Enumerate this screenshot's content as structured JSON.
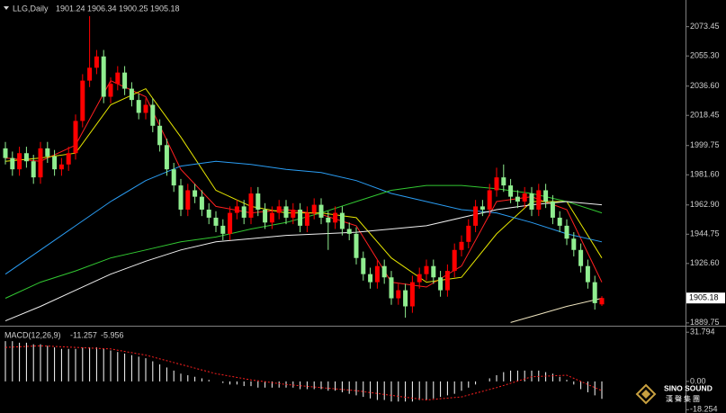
{
  "chart_data": [
    {
      "type": "candlestick",
      "symbol": "LLG,Daily",
      "up_color": "#ff0000",
      "down_color": "#90ee90",
      "open": [
        1998,
        1992,
        1985,
        1995,
        1990,
        1980,
        1998,
        1993,
        1985,
        1988,
        1995,
        2015,
        2040,
        2048,
        2055,
        2030,
        2038,
        2045,
        2035,
        2028,
        2020,
        2025,
        2012,
        2000,
        1985,
        1975,
        1960,
        1972,
        1968,
        1960,
        1955,
        1950,
        1945,
        1958,
        1962,
        1955,
        1970,
        1960,
        1952,
        1958,
        1962,
        1955,
        1960,
        1950,
        1958,
        1963,
        1955,
        1952,
        1958,
        1948,
        1945,
        1930,
        1920,
        1915,
        1925,
        1918,
        1905,
        1910,
        1900,
        1915,
        1920,
        1925,
        1918,
        1910,
        1922,
        1935,
        1940,
        1950,
        1962,
        1960,
        1972,
        1980,
        1975,
        1968,
        1965,
        1970,
        1960,
        1972,
        1965,
        1955,
        1950,
        1942,
        1935,
        1925,
        1915,
        1901.24
      ],
      "high": [
        2002,
        1996,
        1999,
        1999,
        1994,
        2002,
        2002,
        1997,
        1992,
        1999,
        2019,
        2044,
        2080,
        2059,
        2059,
        2042,
        2049,
        2049,
        2039,
        2032,
        2029,
        2029,
        2016,
        2004,
        1989,
        1979,
        1976,
        1976,
        1972,
        1964,
        1959,
        1954,
        1962,
        1966,
        1966,
        1974,
        1974,
        1964,
        1962,
        1966,
        1966,
        1964,
        1964,
        1962,
        1967,
        1967,
        1959,
        1962,
        1962,
        1952,
        1949,
        1934,
        1924,
        1929,
        1929,
        1922,
        1914,
        1914,
        1919,
        1924,
        1929,
        1929,
        1922,
        1926,
        1939,
        1944,
        1954,
        1966,
        1966,
        1976,
        1986,
        1988,
        1979,
        1972,
        1974,
        1974,
        1976,
        1976,
        1969,
        1959,
        1954,
        1946,
        1939,
        1929,
        1919,
        1906.34
      ],
      "low": [
        1988,
        1981,
        1981,
        1986,
        1976,
        1976,
        1989,
        1981,
        1981,
        1984,
        1991,
        2011,
        2036,
        2044,
        2026,
        2026,
        2034,
        2031,
        2024,
        2016,
        2016,
        2008,
        1996,
        1981,
        1971,
        1956,
        1956,
        1964,
        1956,
        1951,
        1946,
        1941,
        1941,
        1954,
        1951,
        1951,
        1956,
        1948,
        1948,
        1954,
        1951,
        1951,
        1946,
        1946,
        1954,
        1951,
        1935,
        1948,
        1944,
        1941,
        1926,
        1916,
        1911,
        1911,
        1914,
        1901,
        1901,
        1893,
        1896,
        1911,
        1916,
        1914,
        1906,
        1906,
        1918,
        1931,
        1936,
        1946,
        1956,
        1956,
        1968,
        1971,
        1964,
        1961,
        1961,
        1956,
        1956,
        1961,
        1951,
        1946,
        1938,
        1931,
        1921,
        1911,
        1898,
        1900.25
      ],
      "close": [
        1992,
        1985,
        1995,
        1990,
        1980,
        1998,
        1993,
        1985,
        1988,
        1995,
        2015,
        2040,
        2048,
        2055,
        2030,
        2038,
        2045,
        2035,
        2028,
        2020,
        2025,
        2012,
        2000,
        1985,
        1975,
        1960,
        1972,
        1968,
        1960,
        1955,
        1950,
        1945,
        1958,
        1962,
        1955,
        1970,
        1960,
        1952,
        1958,
        1962,
        1955,
        1960,
        1950,
        1958,
        1963,
        1955,
        1952,
        1958,
        1948,
        1945,
        1930,
        1920,
        1915,
        1925,
        1918,
        1905,
        1910,
        1900,
        1915,
        1920,
        1925,
        1918,
        1910,
        1922,
        1935,
        1940,
        1950,
        1962,
        1960,
        1972,
        1980,
        1975,
        1968,
        1965,
        1970,
        1960,
        1972,
        1965,
        1955,
        1950,
        1942,
        1935,
        1925,
        1915,
        1902,
        1905.18
      ],
      "series": [
        {
          "color": "#ff2020",
          "x": [
            0,
            5,
            10,
            15,
            20,
            25,
            30,
            35,
            40,
            45,
            50,
            55,
            60,
            65,
            70,
            75,
            80,
            85
          ],
          "values": [
            1992,
            1990,
            2000,
            2040,
            2030,
            1985,
            1962,
            1958,
            1960,
            1957,
            1950,
            1915,
            1912,
            1925,
            1965,
            1968,
            1960,
            1915
          ]
        },
        {
          "color": "#e6e600",
          "x": [
            0,
            5,
            10,
            15,
            20,
            25,
            30,
            35,
            40,
            45,
            50,
            55,
            60,
            65,
            70,
            75,
            80,
            85
          ],
          "values": [
            1990,
            1992,
            1995,
            2025,
            2035,
            2005,
            1972,
            1962,
            1958,
            1958,
            1955,
            1930,
            1915,
            1918,
            1945,
            1965,
            1965,
            1930
          ]
        },
        {
          "color": "#2a9df4",
          "x": [
            0,
            5,
            10,
            15,
            20,
            25,
            30,
            35,
            40,
            45,
            50,
            55,
            60,
            65,
            70,
            75,
            80,
            85
          ],
          "values": [
            1920,
            1935,
            1950,
            1965,
            1978,
            1987,
            1990,
            1988,
            1985,
            1983,
            1978,
            1970,
            1965,
            1960,
            1958,
            1952,
            1945,
            1940
          ]
        },
        {
          "color": "#32c832",
          "x": [
            0,
            5,
            10,
            15,
            20,
            25,
            30,
            35,
            40,
            45,
            50,
            55,
            60,
            65,
            70,
            75,
            80,
            85
          ],
          "values": [
            1905,
            1915,
            1922,
            1930,
            1935,
            1940,
            1943,
            1948,
            1952,
            1958,
            1965,
            1972,
            1975,
            1975,
            1973,
            1970,
            1965,
            1958
          ]
        },
        {
          "color": "#f0f0f0",
          "x": [
            0,
            5,
            10,
            15,
            20,
            25,
            30,
            35,
            40,
            45,
            50,
            55,
            60,
            65,
            70,
            75,
            80,
            85
          ],
          "values": [
            1891,
            1900,
            1910,
            1920,
            1928,
            1935,
            1940,
            1942,
            1944,
            1945,
            1946,
            1948,
            1950,
            1955,
            1960,
            1963,
            1965,
            1963
          ]
        },
        {
          "color": "#f0e6c0",
          "x": [
            72,
            76,
            80,
            85
          ],
          "values": [
            1890,
            1895,
            1900,
            1905
          ]
        }
      ],
      "ylim": [
        1888,
        2090
      ],
      "yticks": [
        2073.45,
        {
          "value": 2055.3,
          "label": "2055.30"
        },
        {
          "value": 2036.6,
          "label": "2036.60"
        },
        2018.45,
        1999.75,
        {
          "value": 1981.6,
          "label": "1981.60"
        },
        {
          "value": 1962.9,
          "label": "1962.90"
        },
        1944.75,
        {
          "value": 1926.6,
          "label": "1926.60"
        },
        1889.75
      ]
    },
    {
      "type": "macd",
      "label": "MACD(12,26,9)",
      "histogram_color": "#ffffff",
      "signal_color": "#ff2020",
      "histogram": [
        26,
        26,
        25,
        25,
        24,
        24,
        23,
        22,
        21,
        21,
        21,
        22,
        22,
        22,
        21,
        20,
        19,
        18,
        17,
        16,
        15,
        13,
        11,
        9,
        7,
        5,
        4,
        3,
        2,
        1,
        0,
        -1,
        -2,
        -2,
        -3,
        -3,
        -4,
        -4,
        -4,
        -4,
        -4,
        -4,
        -5,
        -5,
        -5,
        -5,
        -6,
        -6,
        -7,
        -8,
        -9,
        -10,
        -11,
        -12,
        -12,
        -13,
        -13,
        -13,
        -13,
        -12,
        -12,
        -11,
        -10,
        -9,
        -8,
        -6,
        -4,
        -2,
        0,
        2,
        4,
        6,
        7,
        7,
        7,
        7,
        7,
        6,
        5,
        3,
        1,
        -2,
        -5,
        -7,
        -9,
        -11.257
      ],
      "signal_x": [
        0,
        5,
        10,
        15,
        20,
        25,
        30,
        35,
        40,
        45,
        50,
        55,
        60,
        65,
        70,
        75,
        80,
        85
      ],
      "signal": [
        22,
        23,
        22,
        21,
        17,
        11,
        5,
        1,
        -2,
        -4,
        -6,
        -9,
        -12,
        -10,
        -4,
        3,
        4,
        -5.956
      ],
      "ylim": [
        -20.4,
        35.4
      ],
      "yticks": [
        31.794,
        {
          "value": 0,
          "label": "0.00"
        },
        -18.254
      ]
    }
  ],
  "watermark": {
    "text": "SINO SOUND",
    "subtext": "漢聲集團"
  }
}
